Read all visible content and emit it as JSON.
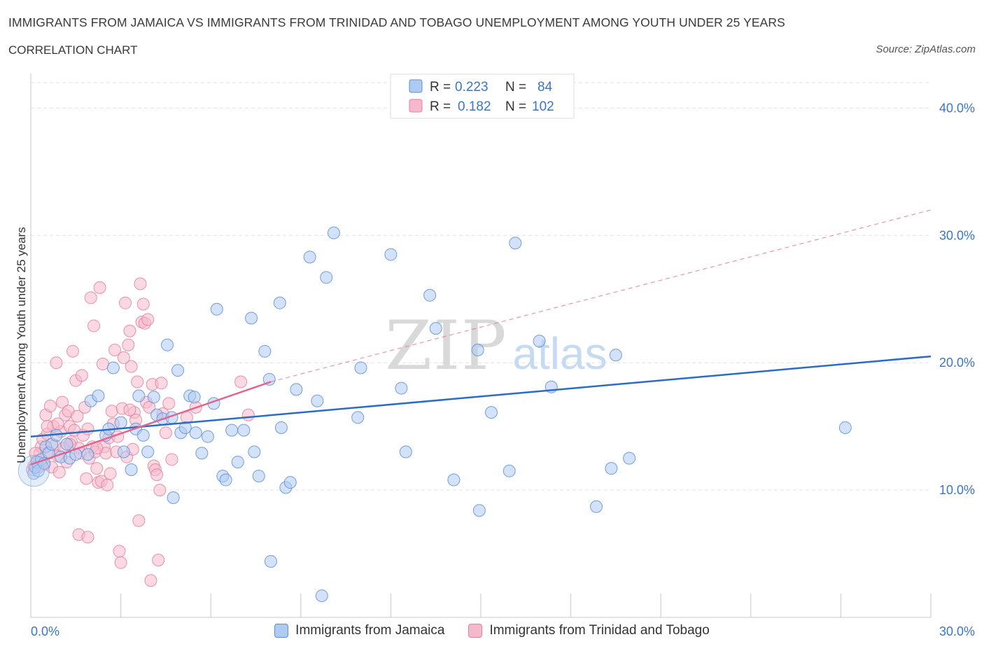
{
  "header": {
    "title": "IMMIGRANTS FROM JAMAICA VS IMMIGRANTS FROM TRINIDAD AND TOBAGO UNEMPLOYMENT AMONG YOUTH UNDER 25 YEARS",
    "subtitle": "CORRELATION CHART",
    "source": "Source: ZipAtlas.com"
  },
  "colors": {
    "blue_fill": "#aecbf2",
    "blue_stroke": "#5a8fd6",
    "blue_line": "#2b6cc4",
    "pink_fill": "#f6b9cb",
    "pink_stroke": "#e57fa1",
    "pink_line": "#e06690",
    "axis_text": "#3a76c8",
    "grid": "#e2e2e2"
  },
  "legend": {
    "rows": [
      {
        "r_label": "R =",
        "r_value": "0.223",
        "n_label": "N =",
        "n_value": "84"
      },
      {
        "r_label": "R =",
        "r_value": "0.182",
        "n_label": "N =",
        "n_value": "102"
      }
    ]
  },
  "watermark": {
    "zip": "ZIP",
    "atlas": "atlas"
  },
  "chart_data": {
    "type": "scatter",
    "title": "IMMIGRANTS FROM JAMAICA VS IMMIGRANTS FROM TRINIDAD AND TOBAGO UNEMPLOYMENT AMONG YOUTH UNDER 25 YEARS",
    "subtitle": "CORRELATION CHART",
    "xlabel": "",
    "ylabel": "Unemployment Among Youth under 25 years",
    "xlim": [
      0,
      30
    ],
    "ylim": [
      0,
      42
    ],
    "x_tick_labels": [
      {
        "value": 0,
        "label": "0.0%"
      },
      {
        "value": 30,
        "label": "30.0%"
      }
    ],
    "y_tick_labels": [
      {
        "value": 10,
        "label": "10.0%"
      },
      {
        "value": 20,
        "label": "20.0%"
      },
      {
        "value": 30,
        "label": "30.0%"
      },
      {
        "value": 40,
        "label": "40.0%"
      }
    ],
    "legend_position": "top-center",
    "series": [
      {
        "name": "Immigrants from Jamaica",
        "color": "#5a8fd6",
        "trend": {
          "x": [
            0,
            30
          ],
          "y": [
            14.2,
            20.5
          ],
          "style": "solid"
        },
        "points": [
          [
            0.1,
            11.3
          ],
          [
            0.15,
            11.8
          ],
          [
            0.2,
            12.2
          ],
          [
            0.25,
            11.5
          ],
          [
            0.35,
            12.4
          ],
          [
            0.5,
            13.4
          ],
          [
            0.6,
            12.9
          ],
          [
            0.7,
            13.6
          ],
          [
            0.85,
            14.3
          ],
          [
            1.0,
            12.6
          ],
          [
            1.2,
            13.6
          ],
          [
            1.3,
            12.5
          ],
          [
            1.5,
            12.8
          ],
          [
            1.9,
            12.8
          ],
          [
            2.0,
            17.0
          ],
          [
            2.25,
            17.4
          ],
          [
            2.5,
            14.3
          ],
          [
            2.6,
            14.8
          ],
          [
            2.75,
            19.6
          ],
          [
            3.0,
            15.3
          ],
          [
            3.1,
            13.0
          ],
          [
            3.35,
            11.6
          ],
          [
            3.5,
            14.8
          ],
          [
            3.6,
            17.4
          ],
          [
            3.75,
            14.3
          ],
          [
            3.9,
            13.0
          ],
          [
            4.1,
            17.3
          ],
          [
            4.2,
            15.9
          ],
          [
            4.4,
            15.6
          ],
          [
            4.55,
            21.4
          ],
          [
            4.7,
            15.7
          ],
          [
            4.75,
            9.4
          ],
          [
            4.9,
            19.4
          ],
          [
            5.0,
            14.5
          ],
          [
            5.15,
            14.9
          ],
          [
            5.3,
            17.4
          ],
          [
            5.45,
            17.3
          ],
          [
            5.5,
            14.5
          ],
          [
            5.7,
            12.9
          ],
          [
            5.9,
            14.2
          ],
          [
            6.1,
            16.8
          ],
          [
            6.2,
            24.2
          ],
          [
            6.4,
            11.1
          ],
          [
            6.5,
            10.8
          ],
          [
            6.7,
            14.7
          ],
          [
            6.9,
            12.2
          ],
          [
            7.1,
            14.7
          ],
          [
            7.35,
            23.5
          ],
          [
            7.45,
            13.0
          ],
          [
            7.6,
            11.1
          ],
          [
            7.8,
            20.9
          ],
          [
            7.95,
            18.7
          ],
          [
            8.0,
            4.4
          ],
          [
            8.3,
            24.7
          ],
          [
            8.35,
            14.9
          ],
          [
            8.5,
            10.2
          ],
          [
            8.65,
            10.6
          ],
          [
            8.85,
            17.9
          ],
          [
            9.3,
            28.3
          ],
          [
            9.55,
            17.0
          ],
          [
            9.7,
            1.7
          ],
          [
            9.85,
            26.7
          ],
          [
            10.1,
            30.2
          ],
          [
            10.9,
            15.7
          ],
          [
            11.0,
            19.6
          ],
          [
            12.0,
            28.5
          ],
          [
            12.35,
            18.0
          ],
          [
            12.5,
            13.0
          ],
          [
            13.3,
            25.3
          ],
          [
            13.5,
            22.7
          ],
          [
            14.1,
            10.8
          ],
          [
            14.9,
            21.0
          ],
          [
            14.95,
            8.4
          ],
          [
            15.35,
            16.1
          ],
          [
            15.95,
            11.5
          ],
          [
            16.15,
            29.4
          ],
          [
            16.95,
            21.7
          ],
          [
            17.35,
            18.1
          ],
          [
            18.85,
            8.7
          ],
          [
            19.35,
            11.7
          ],
          [
            19.5,
            20.6
          ],
          [
            19.95,
            12.5
          ],
          [
            27.15,
            14.9
          ],
          [
            0.45,
            12.1
          ]
        ]
      },
      {
        "name": "Immigrants from Trinidad and Tobago",
        "color": "#e57fa1",
        "trend": {
          "x": [
            0,
            8
          ],
          "y": [
            12.0,
            18.5
          ],
          "style": "solid",
          "extended": {
            "x": [
              8,
              30
            ],
            "y": [
              18.5,
              32.0
            ],
            "style": "dashed"
          }
        },
        "points": [
          [
            0.05,
            11.6
          ],
          [
            0.1,
            11.9
          ],
          [
            0.2,
            12.3
          ],
          [
            0.3,
            12.9
          ],
          [
            0.35,
            13.4
          ],
          [
            0.4,
            14.0
          ],
          [
            0.45,
            12.0
          ],
          [
            0.5,
            15.9
          ],
          [
            0.55,
            14.4
          ],
          [
            0.6,
            13.0
          ],
          [
            0.65,
            16.6
          ],
          [
            0.7,
            11.8
          ],
          [
            0.75,
            15.0
          ],
          [
            0.8,
            13.5
          ],
          [
            0.85,
            20.0
          ],
          [
            0.9,
            12.7
          ],
          [
            0.95,
            11.4
          ],
          [
            1.0,
            14.6
          ],
          [
            1.05,
            16.9
          ],
          [
            1.1,
            13.3
          ],
          [
            1.15,
            15.9
          ],
          [
            1.2,
            12.2
          ],
          [
            1.25,
            16.2
          ],
          [
            1.3,
            15.0
          ],
          [
            1.35,
            13.8
          ],
          [
            1.4,
            20.9
          ],
          [
            1.45,
            14.7
          ],
          [
            1.5,
            18.6
          ],
          [
            1.55,
            15.8
          ],
          [
            1.6,
            13.3
          ],
          [
            1.65,
            12.9
          ],
          [
            1.7,
            19.0
          ],
          [
            1.75,
            14.3
          ],
          [
            1.8,
            16.5
          ],
          [
            1.85,
            10.9
          ],
          [
            1.9,
            14.8
          ],
          [
            1.95,
            12.5
          ],
          [
            2.0,
            25.1
          ],
          [
            2.05,
            13.4
          ],
          [
            2.1,
            22.9
          ],
          [
            2.15,
            13.0
          ],
          [
            2.2,
            11.7
          ],
          [
            2.25,
            10.6
          ],
          [
            2.3,
            25.9
          ],
          [
            2.35,
            10.7
          ],
          [
            2.4,
            19.9
          ],
          [
            2.45,
            13.4
          ],
          [
            2.5,
            12.9
          ],
          [
            2.55,
            10.4
          ],
          [
            2.6,
            14.1
          ],
          [
            2.7,
            16.2
          ],
          [
            2.75,
            15.2
          ],
          [
            2.8,
            21.0
          ],
          [
            2.85,
            13.0
          ],
          [
            2.9,
            14.2
          ],
          [
            2.95,
            5.2
          ],
          [
            3.0,
            4.3
          ],
          [
            3.05,
            16.4
          ],
          [
            3.1,
            20.4
          ],
          [
            3.15,
            24.7
          ],
          [
            3.2,
            12.6
          ],
          [
            3.25,
            21.4
          ],
          [
            3.3,
            22.5
          ],
          [
            3.35,
            19.7
          ],
          [
            3.4,
            13.2
          ],
          [
            3.45,
            16.1
          ],
          [
            3.5,
            15.5
          ],
          [
            3.55,
            18.5
          ],
          [
            3.6,
            7.6
          ],
          [
            3.65,
            26.2
          ],
          [
            3.7,
            23.2
          ],
          [
            3.75,
            24.6
          ],
          [
            3.8,
            23.1
          ],
          [
            3.85,
            16.9
          ],
          [
            3.9,
            23.4
          ],
          [
            3.95,
            16.5
          ],
          [
            4.0,
            2.9
          ],
          [
            4.05,
            18.3
          ],
          [
            4.1,
            11.9
          ],
          [
            4.15,
            11.6
          ],
          [
            4.2,
            11.2
          ],
          [
            4.25,
            4.5
          ],
          [
            4.3,
            10.0
          ],
          [
            4.35,
            18.4
          ],
          [
            4.4,
            16.0
          ],
          [
            4.5,
            14.5
          ],
          [
            4.6,
            16.8
          ],
          [
            4.7,
            12.4
          ],
          [
            5.2,
            15.7
          ],
          [
            5.5,
            16.5
          ],
          [
            7.0,
            18.5
          ],
          [
            7.25,
            15.9
          ],
          [
            0.15,
            12.9
          ],
          [
            0.25,
            11.8
          ],
          [
            0.55,
            15.0
          ],
          [
            0.9,
            15.2
          ],
          [
            1.3,
            13.6
          ],
          [
            1.6,
            6.5
          ],
          [
            1.9,
            6.3
          ],
          [
            2.2,
            13.3
          ],
          [
            2.65,
            11.3
          ],
          [
            3.3,
            16.3
          ]
        ]
      }
    ]
  },
  "bottom_legend": [
    {
      "label": "Immigrants from Jamaica"
    },
    {
      "label": "Immigrants from Trinidad and Tobago"
    }
  ]
}
